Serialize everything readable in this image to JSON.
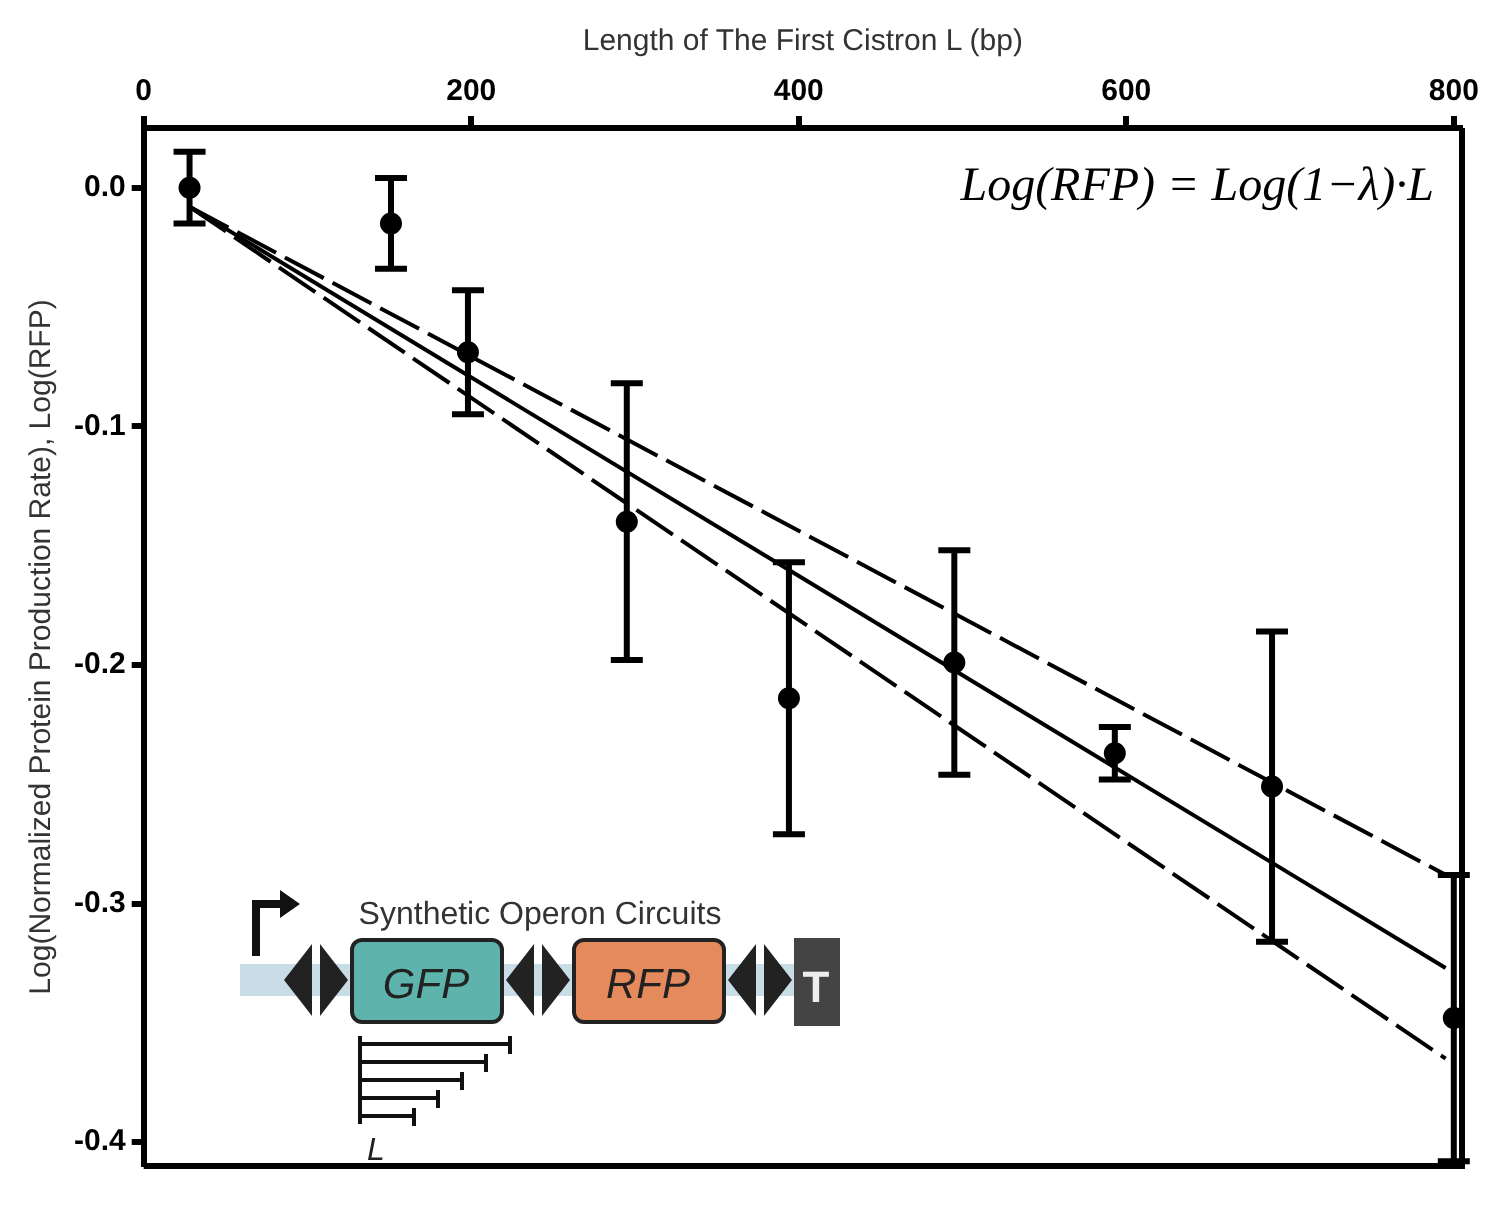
{
  "chart_data": {
    "type": "scatter",
    "xlabel": "Length of The First Cistron L (bp)",
    "ylabel": "Log(Normalized Protein Production Rate), Log(RFP)",
    "annotations": [
      "Log(RFP) = Log(1−λ)·L",
      "Synthetic Operon Circuits",
      "GFP",
      "RFP",
      "T",
      "L"
    ],
    "xlim": [
      0,
      805
    ],
    "xticks": [
      0,
      200,
      400,
      600,
      800
    ],
    "ylim": [
      -0.41,
      0.025
    ],
    "yticks": [
      {
        "value": 0,
        "label": "0.0"
      },
      -0.1,
      -0.2,
      -0.3,
      -0.4
    ],
    "grid": false,
    "legend": false,
    "marker": "circle",
    "series": [
      {
        "color": "#000000",
        "x": [
          28,
          151,
          198,
          295,
          394,
          495,
          593,
          689,
          800
        ],
        "values": [
          0,
          -0.015,
          -0.069,
          -0.14,
          -0.214,
          -0.199,
          -0.237,
          -0.251,
          -0.348
        ],
        "errors": [
          0.015,
          0.019,
          0.026,
          0.058,
          0.057,
          0.047,
          0.011,
          0.065,
          0.06
        ]
      },
      {
        "type": "line",
        "color": "#000000",
        "line_style": "dashed",
        "marker": "none",
        "x": [
          28,
          795
        ],
        "values": [
          -0.008,
          -0.288
        ]
      },
      {
        "type": "line",
        "color": "#000000",
        "line_style": "solid",
        "marker": "none",
        "x": [
          28,
          795
        ],
        "values": [
          -0.008,
          -0.327
        ]
      },
      {
        "type": "line",
        "color": "#000000",
        "line_style": "dashed",
        "marker": "none",
        "x": [
          28,
          795
        ],
        "values": [
          -0.008,
          -0.365
        ]
      }
    ]
  }
}
